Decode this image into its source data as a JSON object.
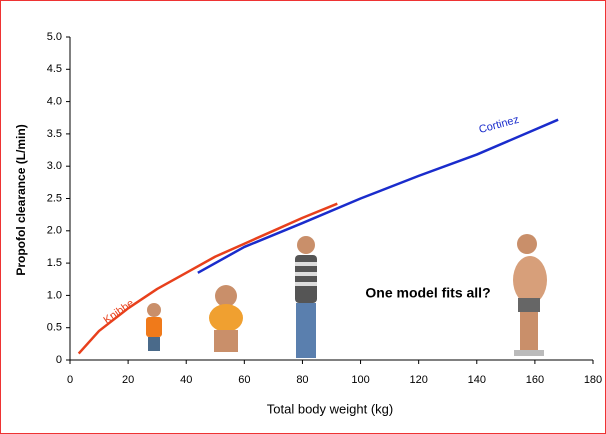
{
  "chart_data": {
    "type": "line",
    "xlabel": "Total body weight (kg)",
    "ylabel": "Propofol clearance (L/min)",
    "annotations": [
      "Knibbe",
      "Cortinez",
      "One model fits all?"
    ],
    "series": [
      {
        "name": "Knibbe",
        "color": "#e8401c",
        "x": [
          3,
          10,
          20,
          30,
          40,
          50,
          60,
          70,
          80,
          92
        ],
        "values": [
          0.1,
          0.45,
          0.8,
          1.1,
          1.35,
          1.6,
          1.8,
          2.0,
          2.2,
          2.42
        ]
      },
      {
        "name": "Cortinez",
        "color": "#1a2ccc",
        "x": [
          44,
          60,
          80,
          100,
          120,
          140,
          168
        ],
        "values": [
          1.35,
          1.75,
          2.12,
          2.5,
          2.85,
          3.18,
          3.72
        ]
      }
    ],
    "xlim": [
      0,
      180
    ],
    "xticks": [
      0,
      20,
      40,
      60,
      80,
      100,
      120,
      140,
      160,
      180
    ],
    "ylim": [
      0,
      5
    ],
    "yticks": [
      0,
      0.5,
      {
        "value": 1,
        "label": "1.0"
      },
      1.5,
      {
        "value": 2,
        "label": "2.0"
      },
      2.5,
      {
        "value": 3,
        "label": "3.0"
      },
      3.5,
      {
        "value": 4,
        "label": "4.0"
      },
      4.5,
      {
        "value": 5,
        "label": "5.0"
      }
    ]
  }
}
